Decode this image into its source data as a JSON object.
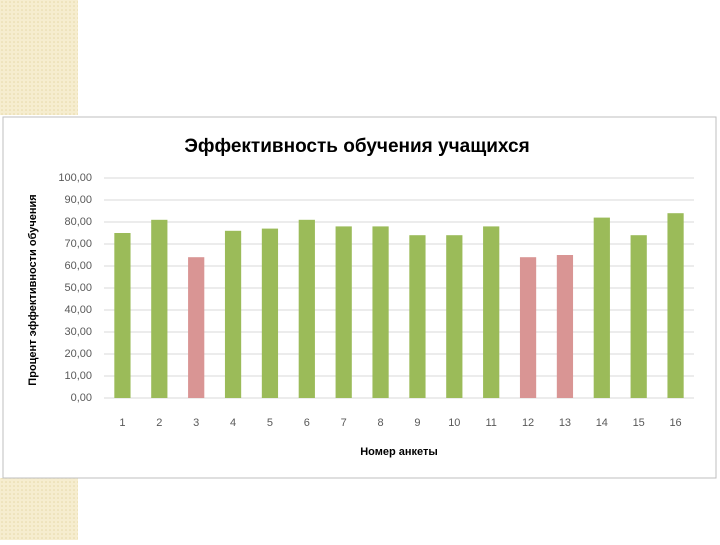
{
  "chart_data": {
    "type": "bar",
    "title": "Эффективность обучения учащихся",
    "x_label": "Номер анкеты",
    "y_label": "Процент эффективности обучения",
    "categories": [
      "1",
      "2",
      "3",
      "4",
      "5",
      "6",
      "7",
      "8",
      "9",
      "10",
      "11",
      "12",
      "13",
      "14",
      "15",
      "16"
    ],
    "values": [
      75,
      81,
      64,
      76,
      77,
      81,
      78,
      78,
      74,
      74,
      78,
      64,
      65,
      82,
      74,
      84
    ],
    "colors": [
      "#9bbb59",
      "#9bbb59",
      "#d99594",
      "#9bbb59",
      "#9bbb59",
      "#9bbb59",
      "#9bbb59",
      "#9bbb59",
      "#9bbb59",
      "#9bbb59",
      "#9bbb59",
      "#d99594",
      "#d99594",
      "#9bbb59",
      "#9bbb59",
      "#9bbb59"
    ],
    "ylim": [
      0,
      100
    ],
    "yticks": [
      {
        "value": 0,
        "label": "0,00"
      },
      {
        "value": 10,
        "label": "10,00"
      },
      {
        "value": 20,
        "label": "20,00"
      },
      {
        "value": 30,
        "label": "30,00"
      },
      {
        "value": 40,
        "label": "40,00"
      },
      {
        "value": 50,
        "label": "50,00"
      },
      {
        "value": 60,
        "label": "60,00"
      },
      {
        "value": 70,
        "label": "70,00"
      },
      {
        "value": 80,
        "label": "80,00"
      },
      {
        "value": 90,
        "label": "90,00"
      },
      {
        "value": 100,
        "label": "100,00"
      }
    ],
    "grid": true
  }
}
